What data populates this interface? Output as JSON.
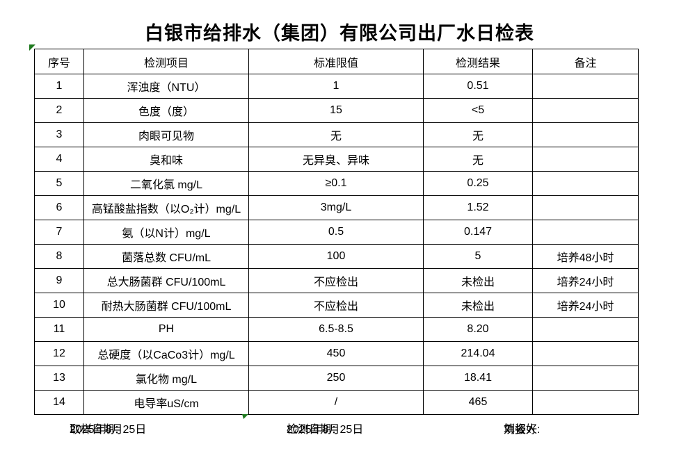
{
  "title": "白银市给排水（集团）有限公司出厂水日检表",
  "table": {
    "headers": [
      "序号",
      "检测项目",
      "标准限值",
      "检测结果",
      "备注"
    ],
    "rows": [
      [
        "1",
        "浑浊度（NTU）",
        "1",
        "0.51",
        ""
      ],
      [
        "2",
        "色度（度）",
        "15",
        "<5",
        ""
      ],
      [
        "3",
        "肉眼可见物",
        "无",
        "无",
        ""
      ],
      [
        "4",
        "臭和味",
        "无异臭、异味",
        "无",
        ""
      ],
      [
        "5",
        "二氧化氯 mg/L",
        "≥0.1",
        "0.25",
        ""
      ],
      [
        "6",
        "高锰酸盐指数（以O₂计）mg/L",
        "3mg/L",
        "1.52",
        ""
      ],
      [
        "7",
        "氨（以N计）mg/L",
        "0.5",
        "0.147",
        ""
      ],
      [
        "8",
        "菌落总数 CFU/mL",
        "100",
        "5",
        "培养48小时"
      ],
      [
        "9",
        "总大肠菌群 CFU/100mL",
        "不应检出",
        "未检出",
        "培养24小时"
      ],
      [
        "10",
        "耐热大肠菌群 CFU/100mL",
        "不应检出",
        "未检出",
        "培养24小时"
      ],
      [
        "11",
        "PH",
        "6.5-8.5",
        "8.20",
        ""
      ],
      [
        "12",
        "总硬度（以CaCo3计）mg/L",
        "450",
        "214.04",
        ""
      ],
      [
        "13",
        "氯化物 mg/L",
        "250",
        "18.41",
        ""
      ],
      [
        "14",
        "电导率uS/cm",
        "/",
        "465",
        ""
      ]
    ]
  },
  "footer": {
    "sampling_date_label": "取样日期：",
    "sampling_date": "2025年8月25日",
    "test_date_label": "检测日期： ",
    "test_date": "2025年8月25日",
    "reporter_label": "填报人:",
    "reporter": "刘姿好"
  },
  "colors": {
    "grid": "#000000",
    "text": "#000000",
    "background": "#ffffff",
    "marker_green": "#1f7a1f"
  }
}
